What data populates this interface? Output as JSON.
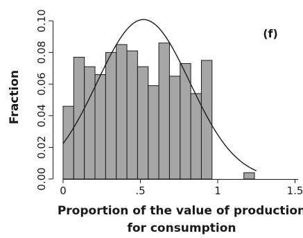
{
  "chart_data": {
    "type": "bar",
    "panel_label": "(f)",
    "xlabel_lines": [
      "Proportion of the value of production",
      "for consumption"
    ],
    "ylabel": "Fraction",
    "xlim": [
      -0.05,
      1.5
    ],
    "ylim": [
      0,
      0.1
    ],
    "x_ticks": [
      0,
      0.5,
      1,
      1.5
    ],
    "x_tick_labels": [
      "0",
      ".5",
      "1",
      "1.5"
    ],
    "y_ticks": [
      0,
      0.02,
      0.04,
      0.06,
      0.08,
      0.1
    ],
    "y_tick_labels": [
      "0.00",
      "0.02",
      "0.04",
      "0.06",
      "0.08",
      "0.10"
    ],
    "bin_width": 0.0688,
    "bins": [
      {
        "start": 0.0,
        "value": 0.046
      },
      {
        "start": 0.0688,
        "value": 0.077
      },
      {
        "start": 0.1376,
        "value": 0.071
      },
      {
        "start": 0.2064,
        "value": 0.066
      },
      {
        "start": 0.2752,
        "value": 0.08
      },
      {
        "start": 0.344,
        "value": 0.085
      },
      {
        "start": 0.4128,
        "value": 0.081
      },
      {
        "start": 0.4816,
        "value": 0.071
      },
      {
        "start": 0.5504,
        "value": 0.059
      },
      {
        "start": 0.6192,
        "value": 0.086
      },
      {
        "start": 0.688,
        "value": 0.065
      },
      {
        "start": 0.7568,
        "value": 0.073
      },
      {
        "start": 0.8256,
        "value": 0.054
      },
      {
        "start": 0.8944,
        "value": 0.075
      },
      {
        "start": 1.169,
        "value": 0.004
      }
    ],
    "density_curve": {
      "type": "normal",
      "mean": 0.52,
      "sd": 0.3,
      "scale": 0.0758,
      "x_range": [
        0.0,
        1.25
      ]
    },
    "colors": {
      "bar_fill": "#a6a6a6",
      "bar_stroke": "#1a1a1a",
      "curve": "#1a1a1a"
    }
  }
}
